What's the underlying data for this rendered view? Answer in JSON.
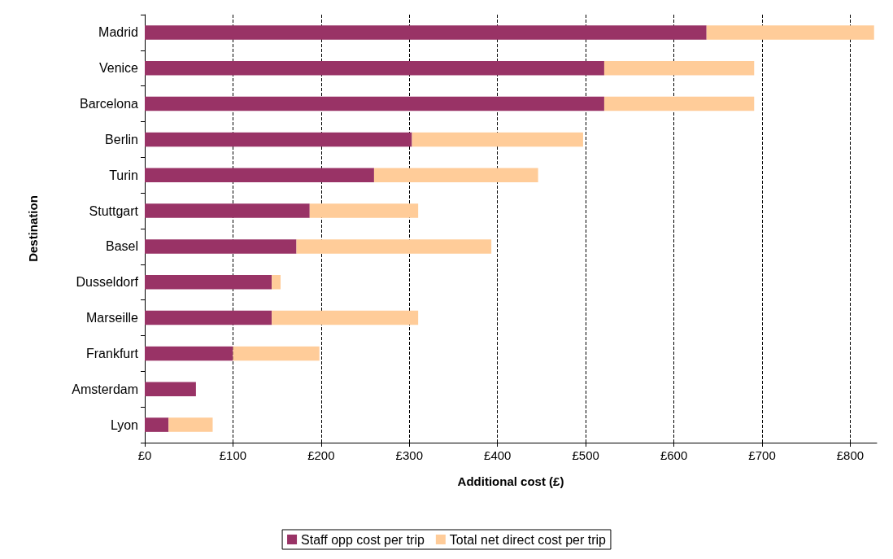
{
  "chart_data": {
    "type": "bar",
    "orientation": "horizontal",
    "stacked": true,
    "xlabel": "Additional cost (£)",
    "ylabel": "Destination",
    "categories": [
      "Madrid",
      "Venice",
      "Barcelona",
      "Berlin",
      "Turin",
      "Stuttgart",
      "Basel",
      "Dusseldorf",
      "Marseille",
      "Frankfurt",
      "Amsterdam",
      "Lyon"
    ],
    "series": [
      {
        "name": "Staff opp cost per trip",
        "color": "#993366",
        "values": [
          637,
          521,
          521,
          303,
          260,
          187,
          172,
          144,
          144,
          100,
          58,
          27
        ]
      },
      {
        "name": "Total net direct cost per trip",
        "color": "#ffcc99",
        "values": [
          190,
          170,
          170,
          194,
          186,
          123,
          221,
          10,
          166,
          98,
          0,
          50
        ]
      }
    ],
    "xlim": [
      0,
      830
    ],
    "xticks": [
      {
        "value": 0,
        "label": "£0"
      },
      {
        "value": 100,
        "label": "£100"
      },
      {
        "value": 200,
        "label": "£200"
      },
      {
        "value": 300,
        "label": "£300"
      },
      {
        "value": 400,
        "label": "£400"
      },
      {
        "value": 500,
        "label": "£500"
      },
      {
        "value": 600,
        "label": "£600"
      },
      {
        "value": 700,
        "label": "£700"
      },
      {
        "value": 800,
        "label": "£800"
      }
    ],
    "grid": "x",
    "legend": "bottom"
  }
}
